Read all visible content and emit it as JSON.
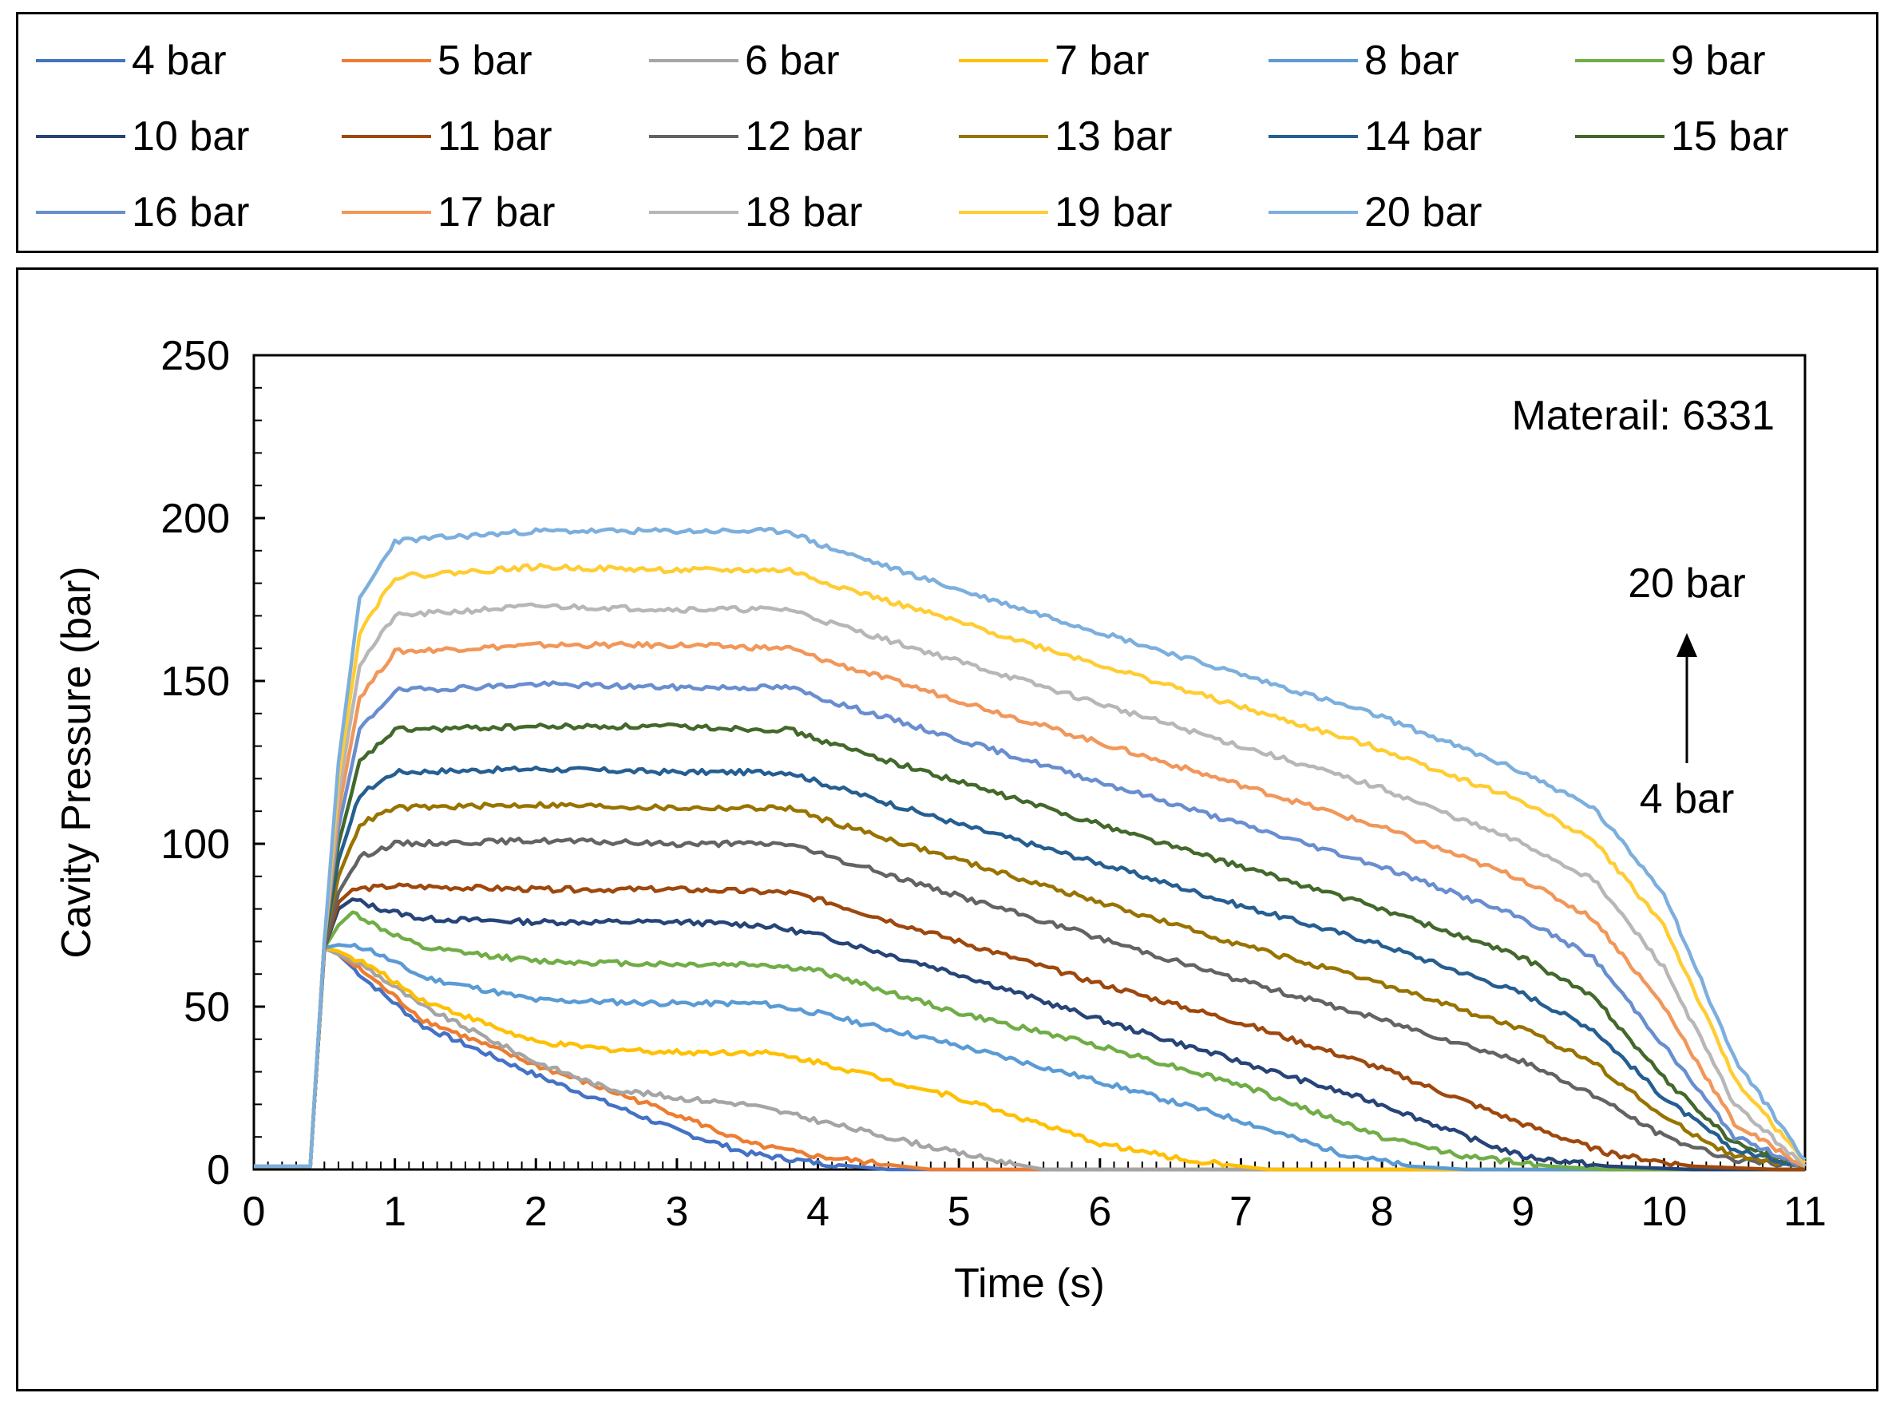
{
  "chart_data": {
    "type": "line",
    "title": "",
    "xlabel": "Time (s)",
    "ylabel": "Cavity Pressure (bar)",
    "xlim": [
      0,
      11
    ],
    "ylim": [
      0,
      250
    ],
    "x_ticks": [
      "0",
      "1",
      "2",
      "3",
      "4",
      "5",
      "6",
      "7",
      "8",
      "9",
      "10",
      "11"
    ],
    "y_ticks": [
      "0",
      "50",
      "100",
      "150",
      "200",
      "250"
    ],
    "annotation_material": "Materail: 6331",
    "arrow_top_label": "20 bar",
    "arrow_bottom_label": "4 bar",
    "series": [
      {
        "name": "4 bar",
        "color": "#4472C4",
        "peak": 70,
        "points": [
          [
            0,
            1
          ],
          [
            0.4,
            1
          ],
          [
            0.5,
            68
          ],
          [
            0.6,
            66
          ],
          [
            0.8,
            58
          ],
          [
            1.2,
            44
          ],
          [
            2,
            29
          ],
          [
            3,
            12
          ],
          [
            3.5,
            5
          ],
          [
            4,
            2
          ],
          [
            4.5,
            0
          ],
          [
            11,
            0
          ]
        ]
      },
      {
        "name": "5 bar",
        "color": "#ED7D31",
        "peak": 70,
        "points": [
          [
            0,
            1
          ],
          [
            0.4,
            1
          ],
          [
            0.5,
            68
          ],
          [
            0.6,
            66
          ],
          [
            0.8,
            60
          ],
          [
            1.2,
            46
          ],
          [
            2,
            32
          ],
          [
            3,
            17
          ],
          [
            3.5,
            8
          ],
          [
            4,
            4
          ],
          [
            4.8,
            0
          ],
          [
            11,
            0
          ]
        ]
      },
      {
        "name": "6 bar",
        "color": "#A5A5A5",
        "peak": 70,
        "points": [
          [
            0,
            1
          ],
          [
            0.4,
            1
          ],
          [
            0.5,
            68
          ],
          [
            0.6,
            66
          ],
          [
            0.8,
            62
          ],
          [
            1.2,
            50
          ],
          [
            2,
            33
          ],
          [
            2.5,
            25
          ],
          [
            3,
            22
          ],
          [
            3.5,
            20
          ],
          [
            4,
            15
          ],
          [
            5,
            5
          ],
          [
            5.6,
            0
          ],
          [
            11,
            0
          ]
        ]
      },
      {
        "name": "7 bar",
        "color": "#FFC000",
        "peak": 70,
        "points": [
          [
            0,
            1
          ],
          [
            0.4,
            1
          ],
          [
            0.5,
            68
          ],
          [
            0.6,
            67
          ],
          [
            0.8,
            63
          ],
          [
            1.2,
            52
          ],
          [
            2,
            39
          ],
          [
            2.5,
            37
          ],
          [
            3,
            36
          ],
          [
            3.6,
            36
          ],
          [
            4,
            33
          ],
          [
            5,
            22
          ],
          [
            6,
            8
          ],
          [
            6.6,
            3
          ],
          [
            7.2,
            0
          ],
          [
            11,
            0
          ]
        ]
      },
      {
        "name": "8 bar",
        "color": "#5B9BD5",
        "peak": 70,
        "points": [
          [
            0,
            1
          ],
          [
            0.4,
            1
          ],
          [
            0.5,
            68
          ],
          [
            0.6,
            69
          ],
          [
            0.8,
            68
          ],
          [
            1.2,
            59
          ],
          [
            2,
            52
          ],
          [
            3,
            51
          ],
          [
            3.6,
            51
          ],
          [
            4,
            48
          ],
          [
            5,
            38
          ],
          [
            6,
            27
          ],
          [
            7,
            15
          ],
          [
            7.7,
            5
          ],
          [
            8.2,
            1
          ],
          [
            8.6,
            0
          ],
          [
            11,
            0
          ]
        ]
      },
      {
        "name": "9 bar",
        "color": "#70AD47",
        "peak": 80,
        "points": [
          [
            0,
            1
          ],
          [
            0.4,
            1
          ],
          [
            0.5,
            68
          ],
          [
            0.6,
            75
          ],
          [
            0.7,
            79
          ],
          [
            0.9,
            74
          ],
          [
            1.2,
            68
          ],
          [
            2,
            64
          ],
          [
            3,
            63
          ],
          [
            3.6,
            63
          ],
          [
            4,
            61
          ],
          [
            5,
            48
          ],
          [
            6,
            38
          ],
          [
            7,
            26
          ],
          [
            8,
            10
          ],
          [
            8.6,
            4
          ],
          [
            9.2,
            1
          ],
          [
            9.6,
            0
          ],
          [
            11,
            0
          ]
        ]
      },
      {
        "name": "10 bar",
        "color": "#264478",
        "peak": 83,
        "points": [
          [
            0,
            1
          ],
          [
            0.4,
            1
          ],
          [
            0.5,
            68
          ],
          [
            0.6,
            80
          ],
          [
            0.7,
            83
          ],
          [
            0.9,
            80
          ],
          [
            1.2,
            77
          ],
          [
            2,
            76
          ],
          [
            3,
            76
          ],
          [
            3.6,
            75
          ],
          [
            4,
            72
          ],
          [
            5,
            60
          ],
          [
            6,
            46
          ],
          [
            7,
            33
          ],
          [
            8,
            20
          ],
          [
            8.6,
            10
          ],
          [
            9,
            4
          ],
          [
            9.6,
            1
          ],
          [
            10.2,
            0
          ],
          [
            11,
            0
          ]
        ]
      },
      {
        "name": "11 bar",
        "color": "#9E480E",
        "peak": 87,
        "points": [
          [
            0,
            1
          ],
          [
            0.4,
            1
          ],
          [
            0.5,
            68
          ],
          [
            0.6,
            82
          ],
          [
            0.7,
            86
          ],
          [
            1,
            87
          ],
          [
            2,
            86
          ],
          [
            3,
            86
          ],
          [
            3.8,
            85
          ],
          [
            4,
            83
          ],
          [
            5,
            70
          ],
          [
            6,
            57
          ],
          [
            7,
            45
          ],
          [
            8,
            31
          ],
          [
            9,
            14
          ],
          [
            9.6,
            5
          ],
          [
            10.2,
            1
          ],
          [
            10.8,
            0
          ],
          [
            11,
            0
          ]
        ]
      },
      {
        "name": "12 bar",
        "color": "#636363",
        "peak": 100,
        "points": [
          [
            0,
            1
          ],
          [
            0.4,
            1
          ],
          [
            0.5,
            68
          ],
          [
            0.6,
            85
          ],
          [
            0.75,
            96
          ],
          [
            1,
            100
          ],
          [
            2,
            101
          ],
          [
            3,
            100
          ],
          [
            3.8,
            100
          ],
          [
            4,
            97
          ],
          [
            5,
            84
          ],
          [
            6,
            71
          ],
          [
            7,
            58
          ],
          [
            8,
            46
          ],
          [
            9,
            33
          ],
          [
            9.5,
            23
          ],
          [
            10,
            10
          ],
          [
            10.5,
            3
          ],
          [
            11,
            1
          ]
        ]
      },
      {
        "name": "13 bar",
        "color": "#997300",
        "peak": 112,
        "points": [
          [
            0,
            1
          ],
          [
            0.4,
            1
          ],
          [
            0.5,
            70
          ],
          [
            0.6,
            90
          ],
          [
            0.75,
            106
          ],
          [
            1,
            111
          ],
          [
            2,
            112
          ],
          [
            3,
            111
          ],
          [
            3.8,
            111
          ],
          [
            4,
            108
          ],
          [
            5,
            95
          ],
          [
            6,
            82
          ],
          [
            7,
            69
          ],
          [
            8,
            57
          ],
          [
            9,
            43
          ],
          [
            9.5,
            33
          ],
          [
            10,
            16
          ],
          [
            10.5,
            4
          ],
          [
            11,
            1
          ]
        ]
      },
      {
        "name": "14 bar",
        "color": "#255E91",
        "peak": 123,
        "points": [
          [
            0,
            1
          ],
          [
            0.4,
            1
          ],
          [
            0.5,
            70
          ],
          [
            0.6,
            95
          ],
          [
            0.75,
            115
          ],
          [
            1,
            122
          ],
          [
            2,
            123
          ],
          [
            3,
            122
          ],
          [
            3.8,
            122
          ],
          [
            4,
            119
          ],
          [
            5,
            106
          ],
          [
            6,
            94
          ],
          [
            7,
            81
          ],
          [
            8,
            69
          ],
          [
            9,
            54
          ],
          [
            9.5,
            43
          ],
          [
            10,
            22
          ],
          [
            10.5,
            6
          ],
          [
            11,
            1
          ]
        ]
      },
      {
        "name": "15 bar",
        "color": "#43682B",
        "peak": 136,
        "points": [
          [
            0,
            1
          ],
          [
            0.4,
            1
          ],
          [
            0.5,
            70
          ],
          [
            0.6,
            100
          ],
          [
            0.75,
            125
          ],
          [
            1,
            135
          ],
          [
            2,
            136
          ],
          [
            3,
            136
          ],
          [
            3.8,
            135
          ],
          [
            4,
            132
          ],
          [
            5,
            119
          ],
          [
            6,
            106
          ],
          [
            7,
            93
          ],
          [
            8,
            80
          ],
          [
            9,
            65
          ],
          [
            9.5,
            53
          ],
          [
            10,
            28
          ],
          [
            10.5,
            8
          ],
          [
            11,
            1
          ]
        ]
      },
      {
        "name": "16 bar",
        "color": "#698ED0",
        "peak": 148,
        "points": [
          [
            0,
            1
          ],
          [
            0.4,
            1
          ],
          [
            0.5,
            70
          ],
          [
            0.6,
            105
          ],
          [
            0.75,
            135
          ],
          [
            1,
            147
          ],
          [
            2,
            149
          ],
          [
            3,
            148
          ],
          [
            3.8,
            148
          ],
          [
            4,
            145
          ],
          [
            5,
            132
          ],
          [
            6,
            119
          ],
          [
            7,
            106
          ],
          [
            8,
            93
          ],
          [
            9,
            77
          ],
          [
            9.5,
            65
          ],
          [
            10,
            38
          ],
          [
            10.5,
            10
          ],
          [
            11,
            1
          ]
        ]
      },
      {
        "name": "17 bar",
        "color": "#F1975A",
        "peak": 161,
        "points": [
          [
            0,
            1
          ],
          [
            0.4,
            1
          ],
          [
            0.5,
            70
          ],
          [
            0.6,
            110
          ],
          [
            0.75,
            145
          ],
          [
            1,
            159
          ],
          [
            2,
            161
          ],
          [
            3,
            161
          ],
          [
            3.8,
            160
          ],
          [
            4,
            157
          ],
          [
            5,
            144
          ],
          [
            6,
            131
          ],
          [
            7,
            118
          ],
          [
            8,
            105
          ],
          [
            9,
            89
          ],
          [
            9.5,
            77
          ],
          [
            10,
            50
          ],
          [
            10.5,
            14
          ],
          [
            11,
            1
          ]
        ]
      },
      {
        "name": "18 bar",
        "color": "#B7B7B7",
        "peak": 173,
        "points": [
          [
            0,
            1
          ],
          [
            0.4,
            1
          ],
          [
            0.5,
            70
          ],
          [
            0.6,
            115
          ],
          [
            0.75,
            155
          ],
          [
            1,
            170
          ],
          [
            2,
            173
          ],
          [
            3,
            172
          ],
          [
            3.8,
            172
          ],
          [
            4,
            169
          ],
          [
            5,
            156
          ],
          [
            6,
            143
          ],
          [
            7,
            130
          ],
          [
            8,
            117
          ],
          [
            9,
            100
          ],
          [
            9.5,
            89
          ],
          [
            10,
            62
          ],
          [
            10.5,
            20
          ],
          [
            11,
            1
          ]
        ]
      },
      {
        "name": "19 bar",
        "color": "#FFCD33",
        "peak": 185,
        "points": [
          [
            0,
            1
          ],
          [
            0.4,
            1
          ],
          [
            0.5,
            70
          ],
          [
            0.6,
            120
          ],
          [
            0.75,
            165
          ],
          [
            1,
            182
          ],
          [
            2,
            185
          ],
          [
            3,
            184
          ],
          [
            3.8,
            184
          ],
          [
            4,
            181
          ],
          [
            5,
            168
          ],
          [
            6,
            155
          ],
          [
            7,
            142
          ],
          [
            8,
            129
          ],
          [
            9,
            113
          ],
          [
            9.5,
            101
          ],
          [
            10,
            75
          ],
          [
            10.5,
            28
          ],
          [
            11,
            2
          ]
        ]
      },
      {
        "name": "20 bar",
        "color": "#7CAFDD",
        "peak": 196,
        "points": [
          [
            0,
            1
          ],
          [
            0.4,
            1
          ],
          [
            0.5,
            70
          ],
          [
            0.6,
            125
          ],
          [
            0.75,
            175
          ],
          [
            1,
            193
          ],
          [
            2,
            196
          ],
          [
            3,
            196
          ],
          [
            3.8,
            196
          ],
          [
            4,
            192
          ],
          [
            5,
            178
          ],
          [
            6,
            165
          ],
          [
            7,
            152
          ],
          [
            8,
            139
          ],
          [
            9,
            122
          ],
          [
            9.5,
            111
          ],
          [
            10,
            85
          ],
          [
            10.5,
            34
          ],
          [
            11,
            3
          ]
        ]
      }
    ]
  }
}
